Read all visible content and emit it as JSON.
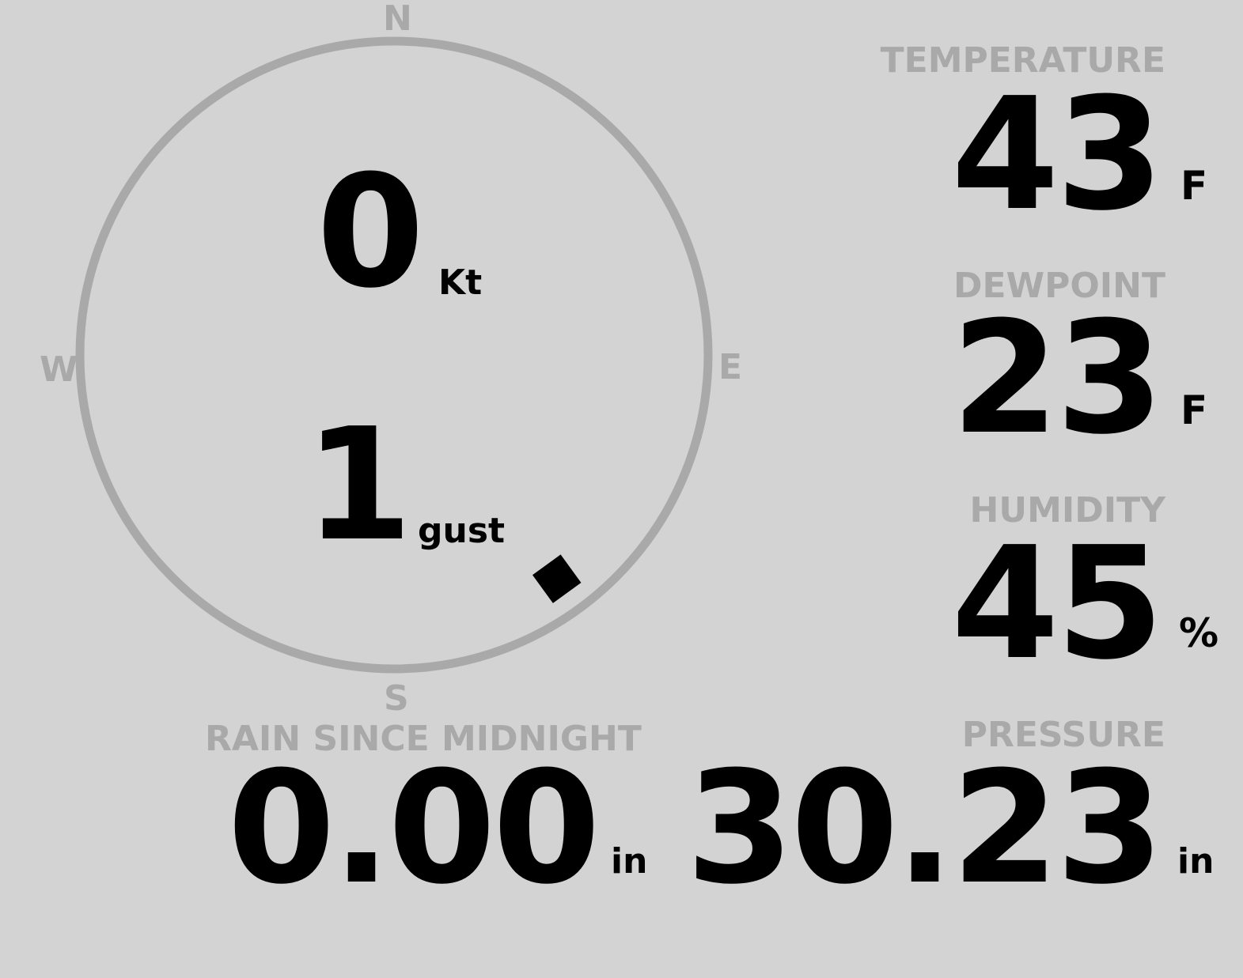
{
  "colors": {
    "background": "#d3d3d3",
    "muted": "#a9a9a9",
    "value": "#000000"
  },
  "wind": {
    "compass": {
      "north": "N",
      "south": "S",
      "east": "E",
      "west": "W"
    },
    "speed": "0",
    "speed_unit": "Kt",
    "gust": "1",
    "gust_unit": "gust",
    "direction_degrees": 144
  },
  "rain": {
    "label": "RAIN SINCE MIDNIGHT",
    "value": "0.00",
    "unit": "in"
  },
  "temperature": {
    "label": "TEMPERATURE",
    "value": "43",
    "unit": "F"
  },
  "dewpoint": {
    "label": "DEWPOINT",
    "value": "23",
    "unit": "F"
  },
  "humidity": {
    "label": "HUMIDITY",
    "value": "45",
    "unit": "%"
  },
  "pressure": {
    "label": "PRESSURE",
    "value": "30.23",
    "unit": "in"
  }
}
